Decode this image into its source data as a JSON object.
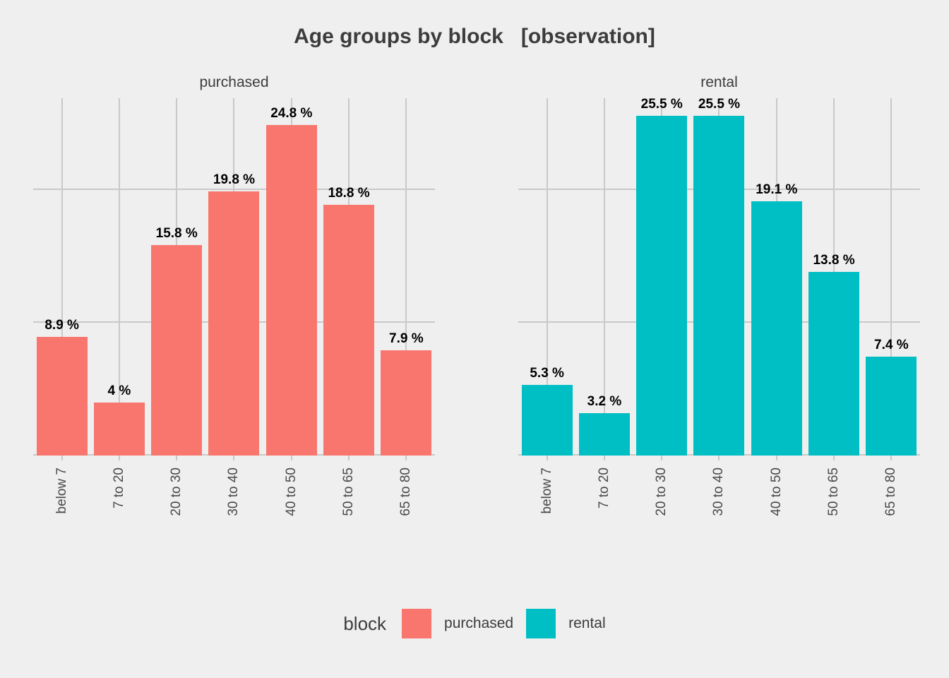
{
  "title": "Age groups by block   [observation]",
  "legend": {
    "title": "block",
    "items": [
      {
        "label": "purchased",
        "color": "#F8766D"
      },
      {
        "label": "rental",
        "color": "#00BFC4"
      }
    ]
  },
  "chart_data": {
    "type": "bar",
    "title": "Age groups by block   [observation]",
    "faceted_by": "block",
    "categories": [
      "below 7",
      "7 to 20",
      "20 to 30",
      "30 to 40",
      "40 to 50",
      "50 to 65",
      "65 to 80"
    ],
    "facets": [
      {
        "name": "purchased",
        "color": "#F8766D",
        "values": [
          8.9,
          4,
          15.8,
          19.8,
          24.8,
          18.8,
          7.9
        ],
        "labels": [
          "8.9 %",
          "4 %",
          "15.8 %",
          "19.8 %",
          "24.8 %",
          "18.8 %",
          "7.9 %"
        ]
      },
      {
        "name": "rental",
        "color": "#00BFC4",
        "values": [
          5.3,
          3.2,
          25.5,
          25.5,
          19.1,
          13.8,
          7.4
        ],
        "labels": [
          "5.3 %",
          "3.2 %",
          "25.5 %",
          "25.5 %",
          "19.1 %",
          "13.8 %",
          "7.4 %"
        ]
      }
    ],
    "unit": "%",
    "xlabel": "",
    "ylabel": "",
    "ylim": [
      0,
      26.8
    ],
    "gridlines_y": [
      0,
      10,
      20
    ],
    "grid": true,
    "y_axis_labels_visible": false,
    "x_axis_label_angle": 90,
    "legend_position": "bottom"
  },
  "colors": {
    "background": "#EFEFEF",
    "gridline": "#C9C9C9",
    "title_text": "#3C3C3C",
    "axis_text": "#4A4A4A",
    "bar_label": "#000000"
  }
}
